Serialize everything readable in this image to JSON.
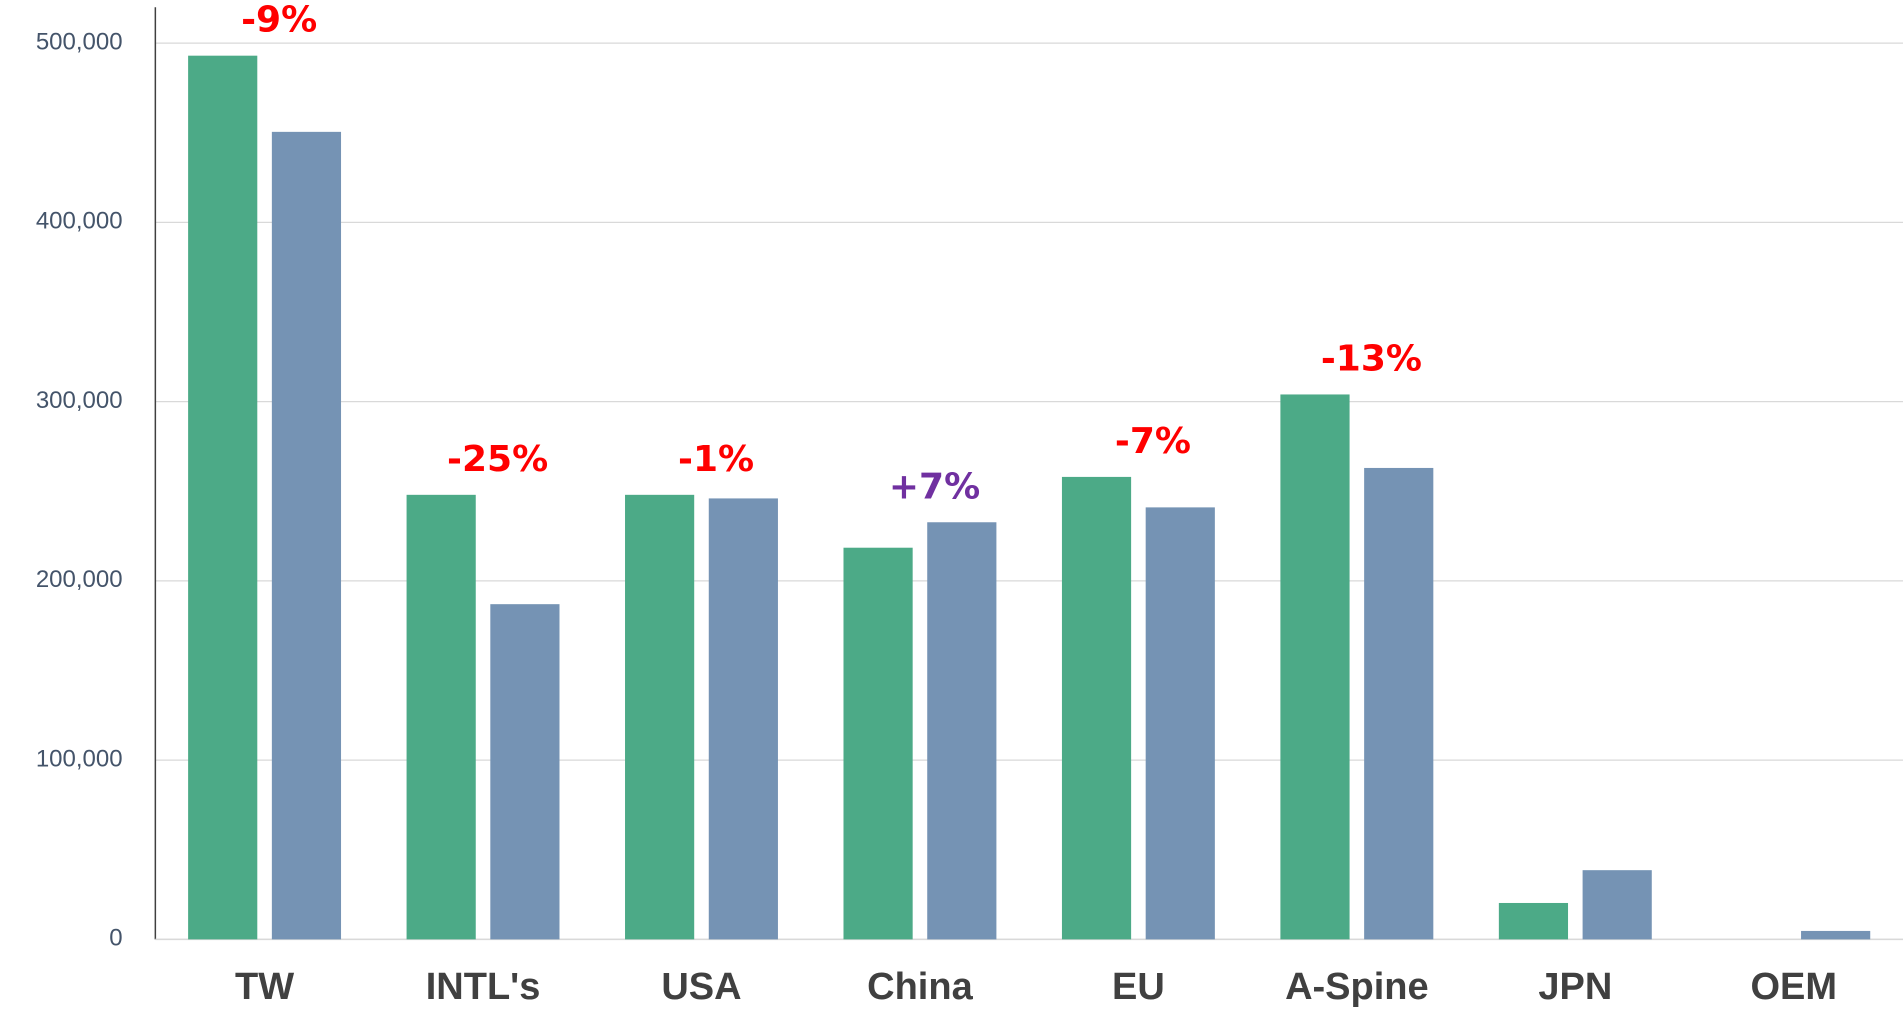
{
  "chart_data": {
    "type": "bar",
    "categories": [
      "TW",
      "INTL's",
      "USA",
      "China",
      "EU",
      "A-Spine",
      "JPN",
      "OEM"
    ],
    "series": [
      {
        "color": "#4caa87",
        "values": [
          493000,
          248000,
          248000,
          218500,
          258000,
          304000,
          20300,
          0
        ]
      },
      {
        "color": "#7593b4",
        "values": [
          450500,
          187000,
          246000,
          232700,
          241000,
          263000,
          38600,
          4700
        ]
      }
    ],
    "annotations": [
      "-9%",
      "-25%",
      "-1%",
      "+7%",
      "-7%",
      "-13%",
      null,
      null
    ],
    "annotation_colors": [
      "#ff0000",
      "#ff0000",
      "#ff0000",
      "#7030a0",
      "#ff0000",
      "#ff0000",
      null,
      null
    ],
    "ylim": [
      0,
      520000
    ],
    "yticks": [
      0,
      {
        "value": 100000,
        "label": "100,000"
      },
      {
        "value": 200000,
        "label": "200,000"
      },
      {
        "value": 300000,
        "label": "300,000"
      },
      {
        "value": 400000,
        "label": "400,000"
      },
      {
        "value": 500000,
        "label": "500,000"
      }
    ],
    "grid": true
  }
}
